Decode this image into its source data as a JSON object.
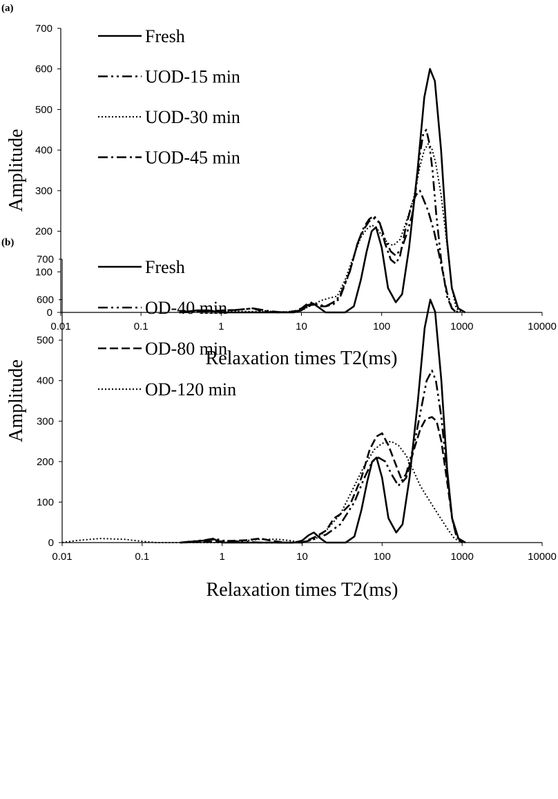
{
  "chart_data": [
    {
      "type": "line",
      "panel_label": "(a)",
      "xlabel": "Relaxation times T2(ms)",
      "ylabel": "Amplitude",
      "xscale": "log",
      "xlim": [
        0.01,
        10000
      ],
      "ylim": [
        0,
        700
      ],
      "x_ticks": [
        "0.01",
        "0.1",
        "1",
        "10",
        "100",
        "1000",
        "10000"
      ],
      "y_ticks": [
        "0",
        "100",
        "200",
        "300",
        "400",
        "500",
        "600",
        "700"
      ],
      "grid": false,
      "legend_position": "top-left",
      "series": [
        {
          "name": "Fresh",
          "style": "solid",
          "points": [
            [
              0.3,
              0
            ],
            [
              0.5,
              5
            ],
            [
              0.7,
              5
            ],
            [
              1,
              0
            ],
            [
              3,
              0
            ],
            [
              8,
              0
            ],
            [
              10,
              5
            ],
            [
              12,
              18
            ],
            [
              14,
              22
            ],
            [
              17,
              10
            ],
            [
              20,
              0
            ],
            [
              35,
              0
            ],
            [
              45,
              15
            ],
            [
              55,
              80
            ],
            [
              65,
              150
            ],
            [
              75,
              200
            ],
            [
              85,
              210
            ],
            [
              100,
              160
            ],
            [
              120,
              60
            ],
            [
              150,
              25
            ],
            [
              180,
              45
            ],
            [
              220,
              160
            ],
            [
              280,
              350
            ],
            [
              340,
              530
            ],
            [
              400,
              600
            ],
            [
              460,
              570
            ],
            [
              550,
              400
            ],
            [
              650,
              180
            ],
            [
              750,
              60
            ],
            [
              900,
              10
            ],
            [
              1100,
              0
            ]
          ]
        },
        {
          "name": "UOD-15 min",
          "style": "dash-dot-dot",
          "points": [
            [
              0.3,
              0
            ],
            [
              0.6,
              3
            ],
            [
              1,
              5
            ],
            [
              1.5,
              6
            ],
            [
              2,
              8
            ],
            [
              2.5,
              10
            ],
            [
              3,
              5
            ],
            [
              5,
              0
            ],
            [
              8,
              2
            ],
            [
              10,
              10
            ],
            [
              12,
              22
            ],
            [
              14,
              25
            ],
            [
              17,
              15
            ],
            [
              20,
              15
            ],
            [
              25,
              20
            ],
            [
              30,
              35
            ],
            [
              40,
              100
            ],
            [
              50,
              170
            ],
            [
              60,
              205
            ],
            [
              70,
              225
            ],
            [
              80,
              232
            ],
            [
              95,
              220
            ],
            [
              110,
              180
            ],
            [
              130,
              150
            ],
            [
              150,
              140
            ],
            [
              180,
              160
            ],
            [
              210,
              200
            ],
            [
              240,
              240
            ],
            [
              270,
              310
            ],
            [
              300,
              390
            ],
            [
              330,
              440
            ],
            [
              360,
              450
            ],
            [
              390,
              420
            ],
            [
              430,
              350
            ],
            [
              480,
              240
            ],
            [
              550,
              130
            ],
            [
              650,
              40
            ],
            [
              750,
              10
            ],
            [
              900,
              0
            ]
          ]
        },
        {
          "name": "UOD-30 min",
          "style": "dotted",
          "points": [
            [
              0.3,
              0
            ],
            [
              1,
              3
            ],
            [
              3,
              2
            ],
            [
              8,
              0
            ],
            [
              10,
              5
            ],
            [
              14,
              20
            ],
            [
              18,
              30
            ],
            [
              22,
              35
            ],
            [
              28,
              40
            ],
            [
              35,
              80
            ],
            [
              45,
              140
            ],
            [
              55,
              185
            ],
            [
              65,
              205
            ],
            [
              75,
              215
            ],
            [
              85,
              210
            ],
            [
              100,
              190
            ],
            [
              120,
              170
            ],
            [
              140,
              165
            ],
            [
              170,
              180
            ],
            [
              200,
              220
            ],
            [
              250,
              280
            ],
            [
              300,
              360
            ],
            [
              340,
              400
            ],
            [
              380,
              415
            ],
            [
              420,
              405
            ],
            [
              470,
              370
            ],
            [
              550,
              290
            ],
            [
              650,
              170
            ],
            [
              750,
              60
            ],
            [
              850,
              10
            ],
            [
              1000,
              0
            ]
          ]
        },
        {
          "name": "UOD-45 min",
          "style": "dash-dot",
          "points": [
            [
              0.3,
              0
            ],
            [
              0.8,
              3
            ],
            [
              1.5,
              6
            ],
            [
              2.5,
              10
            ],
            [
              4,
              3
            ],
            [
              6,
              0
            ],
            [
              10,
              5
            ],
            [
              13,
              18
            ],
            [
              16,
              20
            ],
            [
              20,
              15
            ],
            [
              25,
              25
            ],
            [
              30,
              40
            ],
            [
              40,
              100
            ],
            [
              50,
              170
            ],
            [
              60,
              210
            ],
            [
              70,
              230
            ],
            [
              80,
              238
            ],
            [
              95,
              220
            ],
            [
              110,
              170
            ],
            [
              130,
              130
            ],
            [
              150,
              120
            ],
            [
              170,
              140
            ],
            [
              200,
              210
            ],
            [
              240,
              270
            ],
            [
              270,
              290
            ],
            [
              300,
              300
            ],
            [
              330,
              280
            ],
            [
              380,
              250
            ],
            [
              450,
              200
            ],
            [
              550,
              120
            ],
            [
              650,
              50
            ],
            [
              750,
              10
            ],
            [
              850,
              0
            ]
          ]
        }
      ]
    },
    {
      "type": "line",
      "panel_label": "(b)",
      "xlabel": "Relaxation times T2(ms)",
      "ylabel": "Amplitude",
      "xscale": "log",
      "xlim": [
        0.01,
        10000
      ],
      "ylim": [
        0,
        700
      ],
      "x_ticks": [
        "0.01",
        "0.1",
        "1",
        "10",
        "100",
        "1000",
        "10000"
      ],
      "y_ticks": [
        "0",
        "100",
        "200",
        "300",
        "400",
        "500",
        "600",
        "700"
      ],
      "grid": false,
      "legend_position": "top-left",
      "series": [
        {
          "name": "Fresh",
          "style": "solid",
          "points": [
            [
              0.3,
              0
            ],
            [
              0.6,
              5
            ],
            [
              0.8,
              8
            ],
            [
              1,
              0
            ],
            [
              3,
              0
            ],
            [
              8,
              0
            ],
            [
              10,
              5
            ],
            [
              12,
              18
            ],
            [
              14,
              25
            ],
            [
              17,
              10
            ],
            [
              20,
              0
            ],
            [
              35,
              0
            ],
            [
              45,
              15
            ],
            [
              55,
              80
            ],
            [
              65,
              150
            ],
            [
              75,
              200
            ],
            [
              85,
              210
            ],
            [
              100,
              160
            ],
            [
              120,
              60
            ],
            [
              150,
              25
            ],
            [
              180,
              45
            ],
            [
              220,
              160
            ],
            [
              280,
              350
            ],
            [
              340,
              530
            ],
            [
              400,
              600
            ],
            [
              460,
              570
            ],
            [
              550,
              400
            ],
            [
              650,
              180
            ],
            [
              750,
              60
            ],
            [
              900,
              10
            ],
            [
              1100,
              0
            ]
          ]
        },
        {
          "name": "OD-40 min",
          "style": "dash-dot-dot",
          "points": [
            [
              0.3,
              0
            ],
            [
              0.6,
              6
            ],
            [
              0.8,
              10
            ],
            [
              1,
              5
            ],
            [
              2,
              2
            ],
            [
              3,
              0
            ],
            [
              10,
              0
            ],
            [
              15,
              10
            ],
            [
              20,
              20
            ],
            [
              30,
              45
            ],
            [
              45,
              100
            ],
            [
              60,
              160
            ],
            [
              75,
              200
            ],
            [
              90,
              210
            ],
            [
              110,
              200
            ],
            [
              130,
              170
            ],
            [
              160,
              140
            ],
            [
              200,
              170
            ],
            [
              250,
              240
            ],
            [
              300,
              320
            ],
            [
              360,
              400
            ],
            [
              420,
              425
            ],
            [
              470,
              400
            ],
            [
              550,
              310
            ],
            [
              650,
              170
            ],
            [
              750,
              60
            ],
            [
              850,
              15
            ],
            [
              1000,
              0
            ]
          ]
        },
        {
          "name": "OD-80 min",
          "style": "dashed",
          "points": [
            [
              0.3,
              0
            ],
            [
              1,
              3
            ],
            [
              2,
              6
            ],
            [
              3,
              10
            ],
            [
              4,
              5
            ],
            [
              6,
              0
            ],
            [
              10,
              0
            ],
            [
              15,
              15
            ],
            [
              20,
              30
            ],
            [
              25,
              60
            ],
            [
              30,
              70
            ],
            [
              40,
              95
            ],
            [
              55,
              160
            ],
            [
              70,
              230
            ],
            [
              85,
              262
            ],
            [
              100,
              270
            ],
            [
              120,
              240
            ],
            [
              150,
              190
            ],
            [
              180,
              150
            ],
            [
              200,
              160
            ],
            [
              250,
              230
            ],
            [
              300,
              280
            ],
            [
              350,
              305
            ],
            [
              420,
              310
            ],
            [
              480,
              300
            ],
            [
              550,
              250
            ],
            [
              650,
              150
            ],
            [
              750,
              60
            ],
            [
              850,
              15
            ],
            [
              1000,
              0
            ]
          ]
        },
        {
          "name": "OD-120 min",
          "style": "dotted",
          "points": [
            [
              0.01,
              0
            ],
            [
              0.015,
              5
            ],
            [
              0.03,
              10
            ],
            [
              0.06,
              8
            ],
            [
              0.1,
              3
            ],
            [
              0.15,
              0
            ],
            [
              1,
              0
            ],
            [
              2,
              5
            ],
            [
              3,
              8
            ],
            [
              5,
              8
            ],
            [
              7,
              5
            ],
            [
              10,
              0
            ],
            [
              15,
              10
            ],
            [
              20,
              30
            ],
            [
              30,
              70
            ],
            [
              45,
              140
            ],
            [
              60,
              190
            ],
            [
              80,
              230
            ],
            [
              100,
              245
            ],
            [
              130,
              250
            ],
            [
              160,
              240
            ],
            [
              200,
              215
            ],
            [
              250,
              175
            ],
            [
              300,
              140
            ],
            [
              400,
              100
            ],
            [
              500,
              70
            ],
            [
              650,
              35
            ],
            [
              800,
              10
            ],
            [
              1000,
              0
            ]
          ]
        }
      ]
    }
  ]
}
